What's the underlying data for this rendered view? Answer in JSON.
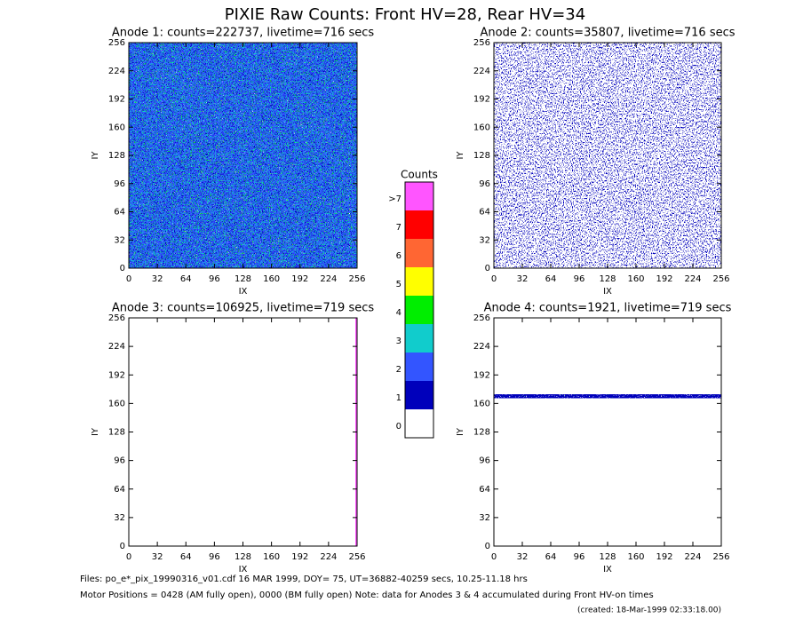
{
  "title": "PIXIE Raw Counts:  Front HV=28, Rear HV=34",
  "chart_data": [
    {
      "type": "heatmap",
      "title": "Anode 1: counts=222737, livetime=716 secs",
      "xlabel": "IX",
      "ylabel": "IY",
      "xlim": [
        0,
        256
      ],
      "ylim": [
        0,
        256
      ],
      "xticks": [
        0,
        32,
        64,
        96,
        128,
        160,
        192,
        224,
        256
      ],
      "yticks": [
        0,
        32,
        64,
        96,
        128,
        160,
        192,
        224,
        256
      ]
    },
    {
      "type": "heatmap",
      "title": "Anode 2: counts=35807, livetime=716 secs",
      "xlabel": "IX",
      "ylabel": "IY",
      "xlim": [
        0,
        256
      ],
      "ylim": [
        0,
        256
      ],
      "xticks": [
        0,
        32,
        64,
        96,
        128,
        160,
        192,
        224,
        256
      ],
      "yticks": [
        0,
        32,
        64,
        96,
        128,
        160,
        192,
        224,
        256
      ]
    },
    {
      "type": "heatmap",
      "title": "Anode 3: counts=106925, livetime=719 secs",
      "xlabel": "IX",
      "ylabel": "IY",
      "xlim": [
        0,
        256
      ],
      "ylim": [
        0,
        256
      ],
      "xticks": [
        0,
        32,
        64,
        96,
        128,
        160,
        192,
        224,
        256
      ],
      "yticks": [
        0,
        32,
        64,
        96,
        128,
        160,
        192,
        224,
        256
      ]
    },
    {
      "type": "heatmap",
      "title": "Anode 4: counts=1921, livetime=719 secs",
      "xlabel": "IX",
      "ylabel": "IY",
      "xlim": [
        0,
        256
      ],
      "ylim": [
        0,
        256
      ],
      "xticks": [
        0,
        32,
        64,
        96,
        128,
        160,
        192,
        224,
        256
      ],
      "yticks": [
        0,
        32,
        64,
        96,
        128,
        160,
        192,
        224,
        256
      ]
    }
  ],
  "colorbar": {
    "title": "Counts",
    "levels": [
      {
        "label": ">7",
        "color": "#ff55ff"
      },
      {
        "label": "7",
        "color": "#ff0000"
      },
      {
        "label": "6",
        "color": "#ff6633"
      },
      {
        "label": "5",
        "color": "#ffff00"
      },
      {
        "label": "4",
        "color": "#00ee00"
      },
      {
        "label": "3",
        "color": "#11cccc"
      },
      {
        "label": "2",
        "color": "#3355ff"
      },
      {
        "label": "1",
        "color": "#0000bb"
      },
      {
        "label": "0",
        "color": "#ffffff"
      }
    ]
  },
  "footer": {
    "files": "Files: po_e*_pix_19990316_v01.cdf    16 MAR 1999, DOY= 75, UT=36882-40259 secs, 10.25-11.18 hrs",
    "motor": "Motor Positions = 0428 (AM fully open), 0000 (BM fully open)    Note: data for Anodes 3 & 4 accumulated during Front HV-on times",
    "created": "(created: 18-Mar-1999 02:33:18.00)"
  }
}
